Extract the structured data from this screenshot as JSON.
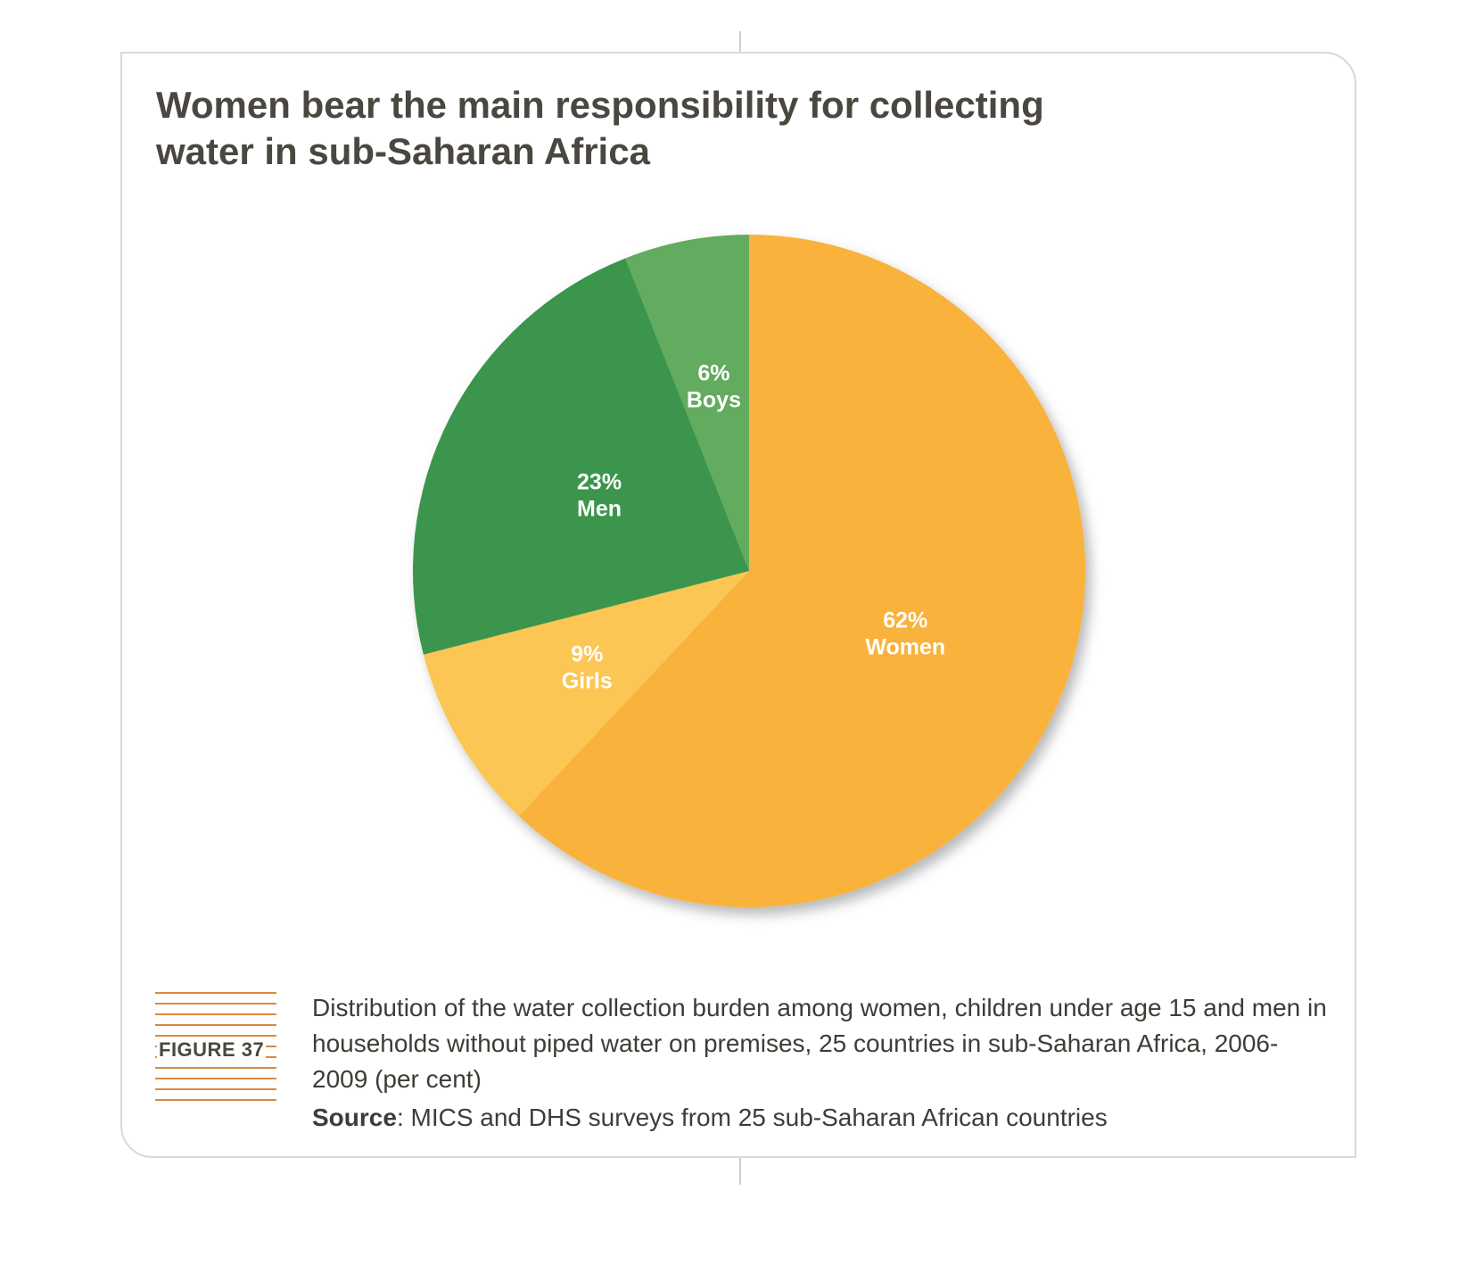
{
  "title_lines": [
    "Women bear the main responsibility for collecting",
    "water in sub-Saharan Africa"
  ],
  "figure_label": "FIGURE 37",
  "caption": "Distribution of the water collection burden among women, children under age 15 and men in households without piped water on premises, 25 countries in sub-Saharan Africa, 2006-2009 (per cent)",
  "source": {
    "label": "Source",
    "text": ": MICS and DHS surveys from 25 sub-Saharan African countries"
  },
  "colors": {
    "women": "#F9B23B",
    "girls": "#FBC653",
    "men": "#3A954D",
    "boys": "#63AB5E",
    "title": "#4A4740",
    "figure_lines": "#D98A3E"
  },
  "chart_data": {
    "type": "pie",
    "title": "Women bear the main responsibility for collecting water in sub-Saharan Africa",
    "slices": [
      {
        "name": "Women",
        "value": 62,
        "label": "62%",
        "color": "#F9B23B"
      },
      {
        "name": "Girls",
        "value": 9,
        "label": "9%",
        "color": "#FBC653"
      },
      {
        "name": "Men",
        "value": 23,
        "label": "23%",
        "color": "#3A954D"
      },
      {
        "name": "Boys",
        "value": 6,
        "label": "6%",
        "color": "#63AB5E"
      }
    ],
    "start": "12 o'clock",
    "direction": "clockwise"
  }
}
